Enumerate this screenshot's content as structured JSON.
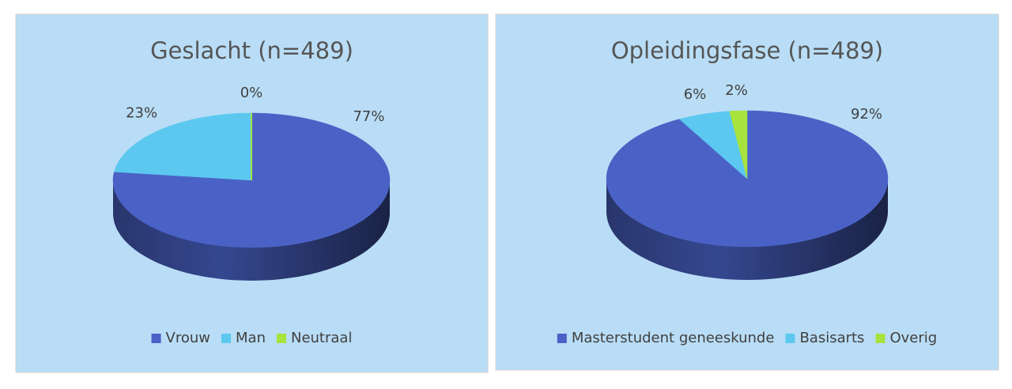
{
  "chart_data": [
    {
      "type": "pie",
      "title": "Geslacht (n=489)",
      "categories": [
        "Vrouw",
        "Man",
        "Neutraal"
      ],
      "values": [
        77,
        23,
        0
      ],
      "value_labels": [
        "77%",
        "23%",
        "0%"
      ],
      "colors": [
        "#4a62c6",
        "#5cc8f0",
        "#a8e23c"
      ],
      "legend": "bottom"
    },
    {
      "type": "pie",
      "title": "Opleidingsfase (n=489)",
      "categories": [
        "Masterstudent geneeskunde",
        "Basisarts",
        "Overig"
      ],
      "values": [
        92,
        6,
        2
      ],
      "value_labels": [
        "92%",
        "6%",
        "2%"
      ],
      "colors": [
        "#4a62c6",
        "#5cc8f0",
        "#a8e23c"
      ],
      "legend": "bottom"
    }
  ]
}
